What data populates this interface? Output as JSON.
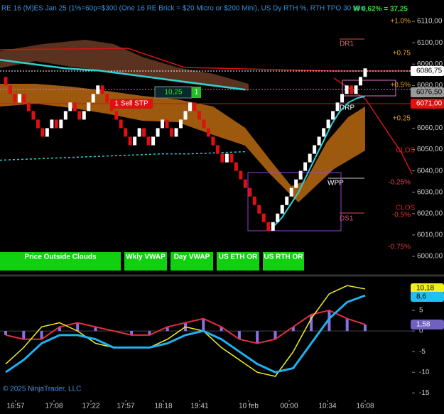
{
  "header": {
    "title": "RE 16 (M)ES Jan 25 (1%=60p=$300  (One 16 RE Brick = $20 Micro or $200 Mini), US Dy RTH %, RTH TPO 30 Min",
    "pnl": "W 0,62% = 37,25"
  },
  "price_chart": {
    "ylim": [
      5992,
      6120
    ],
    "yticks": [
      {
        "value": 6110,
        "label": "6110,00"
      },
      {
        "value": 6100,
        "label": "6100,00"
      },
      {
        "value": 6090,
        "label": "6090,00"
      },
      {
        "value": 6080,
        "label": "6080,00"
      },
      {
        "value": 6070,
        "label": "6070,00"
      },
      {
        "value": 6060,
        "label": "6060,00"
      },
      {
        "value": 6050,
        "label": "6050,00"
      },
      {
        "value": 6040,
        "label": "6040,00"
      },
      {
        "value": 6030,
        "label": "6030,00"
      },
      {
        "value": 6020,
        "label": "6020,00"
      },
      {
        "value": 6010,
        "label": "6010,00"
      },
      {
        "value": 6000,
        "label": "6000,00"
      }
    ],
    "percent_labels": [
      "+1.0%",
      "+0.75",
      "+0.5%",
      "+0.25",
      "-0.25%",
      "-0.5%",
      "-0.75%"
    ],
    "level_labels": [
      "DR1",
      "DRP",
      "WPP",
      "DS1",
      "CLOS",
      "CLOS"
    ],
    "bricks": [
      6080,
      6076,
      6072,
      6076,
      6072,
      6068,
      6064,
      6060,
      6056,
      6060,
      6064,
      6060,
      6064,
      6068,
      6072,
      6068,
      6064,
      6068,
      6072,
      6076,
      6080,
      6076,
      6072,
      6068,
      6064,
      6060,
      6056,
      6052,
      6056,
      6060,
      6056,
      6052,
      6056,
      6060,
      6064,
      6060,
      6056,
      6060,
      6064,
      6068,
      6072,
      6068,
      6064,
      6060,
      6056,
      6052,
      6048,
      6044,
      6048,
      6044,
      6040,
      6036,
      6032,
      6028,
      6024,
      6020,
      6016,
      6012,
      6016,
      6020,
      6024,
      6028,
      6032,
      6036,
      6040,
      6044,
      6048,
      6052,
      6056,
      6060,
      6064,
      6068,
      6072,
      6076,
      6080,
      6076,
      6080,
      6084,
      6088
    ],
    "ma": [
      6092,
      6091,
      6090,
      6089,
      6088,
      6087.5,
      6087,
      6086,
      6085,
      6084,
      6083,
      6082,
      6081,
      6080,
      6079,
      6078
    ],
    "ma_recovery": [
      6014,
      6018,
      6024,
      6030,
      6038,
      6046,
      6054,
      6062,
      6068,
      6072,
      6074,
      6075
    ],
    "vwap": [
      6045,
      6045.5,
      6046,
      6046.5,
      6047,
      6047.5,
      6048,
      6048,
      6048.5,
      6049
    ],
    "price_flags": [
      "6086,75",
      "6076,50",
      "6071,00"
    ],
    "order_label": "1 Sell STP",
    "position": {
      "pnl": "10,25",
      "qty": "1"
    }
  },
  "buttons": [
    "Price Outside Clouds",
    "Wkly VWAP",
    "Day VWAP",
    "US ETH OR",
    "US RTH OR"
  ],
  "oscillator": {
    "ylim": [
      -16.5,
      12.75
    ],
    "yticks": [
      5,
      0,
      -5,
      -10,
      -15
    ],
    "yellow": [
      -8,
      -4,
      1,
      2,
      0,
      -3,
      -4,
      -4,
      -4,
      -2,
      1,
      0,
      -4,
      -7,
      -10,
      -11,
      -5,
      3,
      9,
      11,
      10.18
    ],
    "blue": [
      -10,
      -7,
      -3,
      -1,
      -1,
      -2,
      -4,
      -4,
      -4,
      -3,
      -1,
      0,
      -2,
      -5,
      -8,
      -10,
      -9,
      -3,
      3,
      7,
      8.6
    ],
    "histogram": [
      -1,
      -2,
      -2,
      1,
      2,
      1,
      0,
      -1,
      -1,
      1,
      2,
      3,
      1,
      -2,
      -3,
      -2,
      1,
      4,
      5,
      3,
      1.58
    ],
    "flags": [
      "10,18",
      "8,6",
      "1,58"
    ]
  },
  "time_labels": [
    "16:57",
    "17:08",
    "17:22",
    "17:57",
    "18:18",
    "19:41",
    "10 feb",
    "00:00",
    "10:34",
    "16:08"
  ],
  "copyright": "© 2025 NinjaTrader, LLC"
}
